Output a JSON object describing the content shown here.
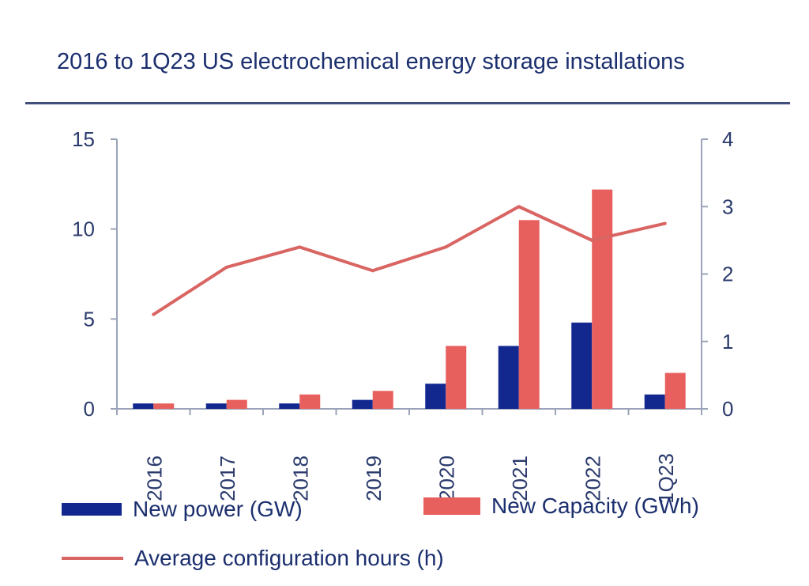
{
  "chart_data": {
    "type": "bar",
    "title": "2016 to 1Q23 US electrochemical energy storage installations",
    "categories": [
      "2016",
      "2017",
      "2018",
      "2019",
      "2020",
      "2021",
      "2022",
      "1Q23"
    ],
    "series": [
      {
        "name": "New power (GW)",
        "type": "bar",
        "axis": "left",
        "color": "#13288f",
        "values": [
          0.3,
          0.3,
          0.3,
          0.5,
          1.4,
          3.5,
          4.8,
          0.8
        ]
      },
      {
        "name": "New Capacity (GWh)",
        "type": "bar",
        "axis": "left",
        "color": "#e8605e",
        "values": [
          0.3,
          0.5,
          0.8,
          1.0,
          3.5,
          10.5,
          12.2,
          2.0
        ]
      },
      {
        "name": "Average configuration hours (h)",
        "type": "line",
        "axis": "right",
        "color": "#d96563",
        "values": [
          1.4,
          2.1,
          2.4,
          2.05,
          2.4,
          3.0,
          2.5,
          2.75
        ]
      }
    ],
    "y_left": {
      "ylim": [
        0,
        15
      ],
      "ticks": [
        "0",
        "5",
        "10",
        "15"
      ]
    },
    "y_right": {
      "ylim": [
        0,
        4
      ],
      "ticks": [
        "0",
        "1",
        "2",
        "3",
        "4"
      ]
    },
    "grid": false,
    "legend_position": "bottom"
  }
}
